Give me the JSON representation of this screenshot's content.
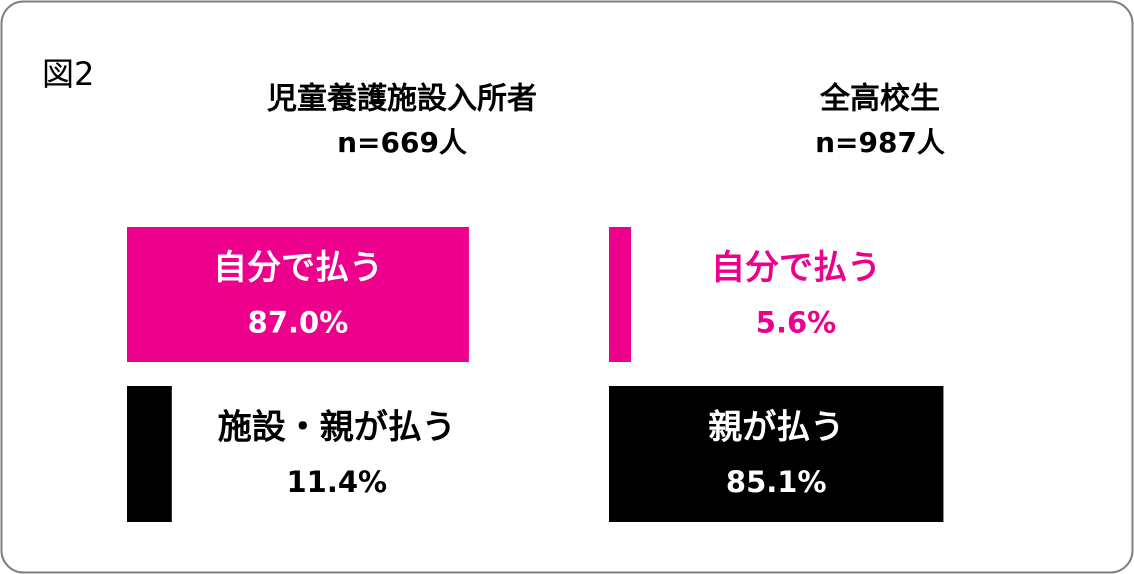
{
  "figure_label": "図2",
  "chart_data": [
    {
      "type": "bar",
      "title": "児童養護施設入所者",
      "subtitle": "n=669人",
      "categories": [
        "自分で払う",
        "施設・親が払う"
      ],
      "values": [
        87.0,
        11.4
      ],
      "value_labels": [
        "87.0%",
        "11.4%"
      ],
      "colors": [
        "#ec008c",
        "#000000"
      ]
    },
    {
      "type": "bar",
      "title": "全高校生",
      "subtitle": "n=987人",
      "categories": [
        "自分で払う",
        "親が払う"
      ],
      "values": [
        5.6,
        85.1
      ],
      "value_labels": [
        "5.6%",
        "85.1%"
      ],
      "colors": [
        "#ec008c",
        "#000000"
      ]
    }
  ]
}
